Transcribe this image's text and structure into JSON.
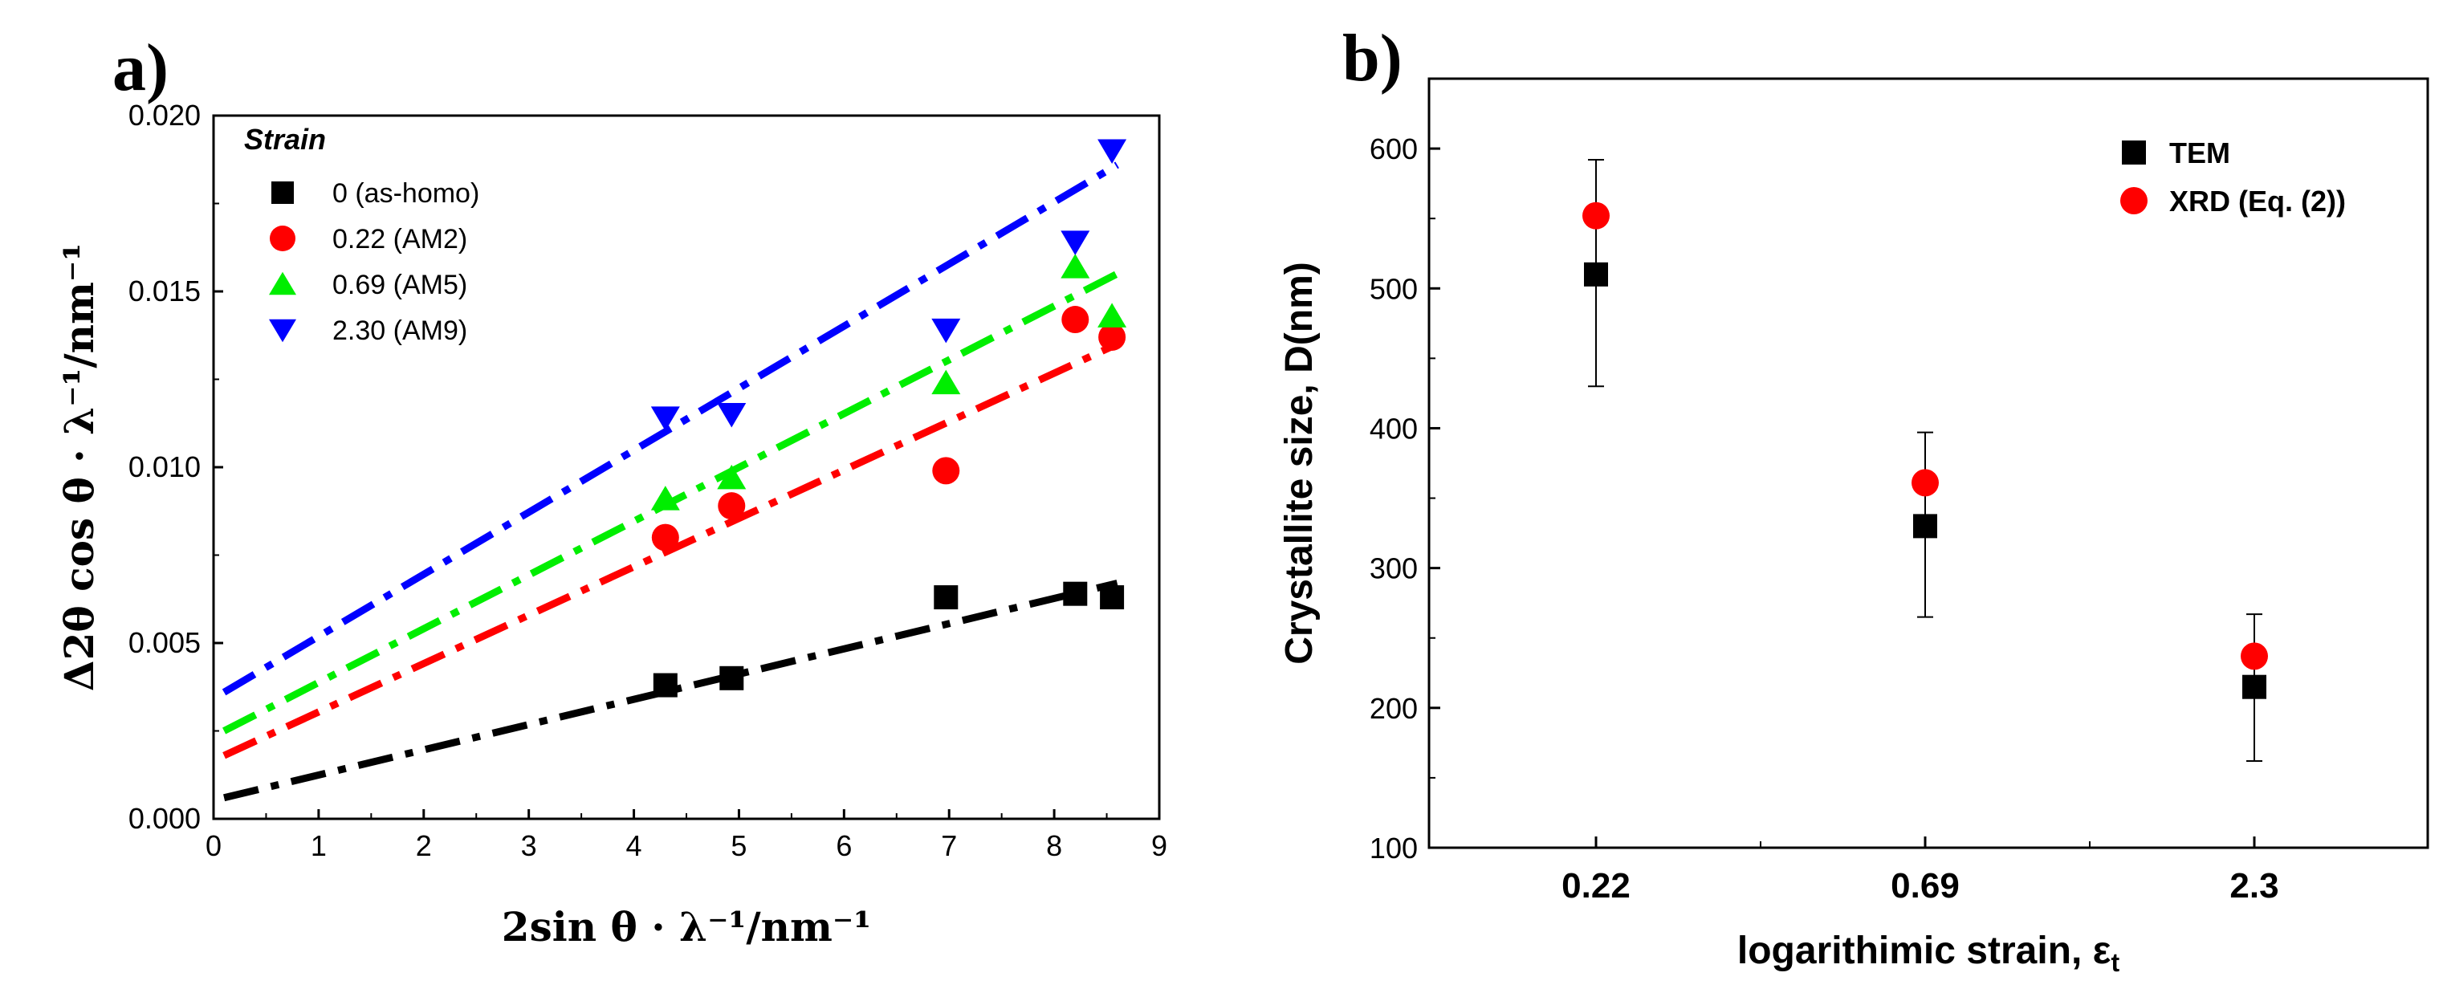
{
  "chart_data": [
    {
      "type": "scatter",
      "panel_label": "a)",
      "xlabel": "2sin θ · λ⁻¹/nm⁻¹",
      "ylabel": "Δ2θ cos θ · λ⁻¹/nm⁻¹",
      "xlim": [
        0,
        9
      ],
      "ylim": [
        0,
        0.02
      ],
      "xticks": [
        "0",
        "1",
        "2",
        "3",
        "4",
        "5",
        "6",
        "7",
        "8",
        "9"
      ],
      "yticks": [
        "0.000",
        "0.005",
        "0.010",
        "0.015",
        "0.020"
      ],
      "legend_title": "Strain",
      "legend_position": "top-left",
      "series": [
        {
          "name": "0 (as-homo)",
          "color": "#000000",
          "marker": "square",
          "x": [
            4.3,
            4.93,
            6.97,
            8.2,
            8.55
          ],
          "y": [
            0.0038,
            0.004,
            0.0063,
            0.0064,
            0.0063
          ],
          "fit": {
            "x0": 0.1,
            "y0": 0.0006,
            "x1": 8.6,
            "y1": 0.0067
          }
        },
        {
          "name": "0.22 (AM2)",
          "color": "#ff0000",
          "marker": "circle",
          "x": [
            4.3,
            4.93,
            6.97,
            8.2,
            8.55
          ],
          "y": [
            0.008,
            0.0089,
            0.0099,
            0.0142,
            0.0137
          ],
          "fit": {
            "x0": 0.1,
            "y0": 0.0018,
            "x1": 8.6,
            "y1": 0.0135
          }
        },
        {
          "name": "0.69 (AM5)",
          "color": "#00ee00",
          "marker": "triangle-up",
          "x": [
            4.3,
            4.93,
            6.97,
            8.2,
            8.55
          ],
          "y": [
            0.0091,
            0.0097,
            0.0124,
            0.0157,
            0.0143
          ],
          "fit": {
            "x0": 0.1,
            "y0": 0.0025,
            "x1": 8.6,
            "y1": 0.0155
          }
        },
        {
          "name": "2.30 (AM9)",
          "color": "#0000ff",
          "marker": "triangle-down",
          "x": [
            4.3,
            4.93,
            6.97,
            8.2,
            8.55
          ],
          "y": [
            0.0114,
            0.0115,
            0.0139,
            0.0164,
            0.019
          ],
          "fit": {
            "x0": 0.1,
            "y0": 0.0036,
            "x1": 8.6,
            "y1": 0.0186
          }
        }
      ]
    },
    {
      "type": "scatter",
      "panel_label": "b)",
      "xlabel": "logarithimic strain, ε",
      "xlabel_sub": "t",
      "ylabel": "Crystallite size, D(nm)",
      "categories": [
        "0.22",
        "0.69",
        "2.3"
      ],
      "ylim": [
        100,
        650
      ],
      "yticks": [
        "100",
        "200",
        "300",
        "400",
        "500",
        "600"
      ],
      "legend_position": "top-right",
      "series": [
        {
          "name": "TEM",
          "color": "#000000",
          "marker": "square",
          "values": [
            510,
            330,
            215
          ],
          "err_low": [
            430,
            265,
            162
          ],
          "err_high": [
            592,
            397,
            267
          ]
        },
        {
          "name": "XRD (Eq. (2))",
          "color": "#ff0000",
          "marker": "circle",
          "values": [
            552,
            361,
            237
          ]
        }
      ]
    }
  ]
}
